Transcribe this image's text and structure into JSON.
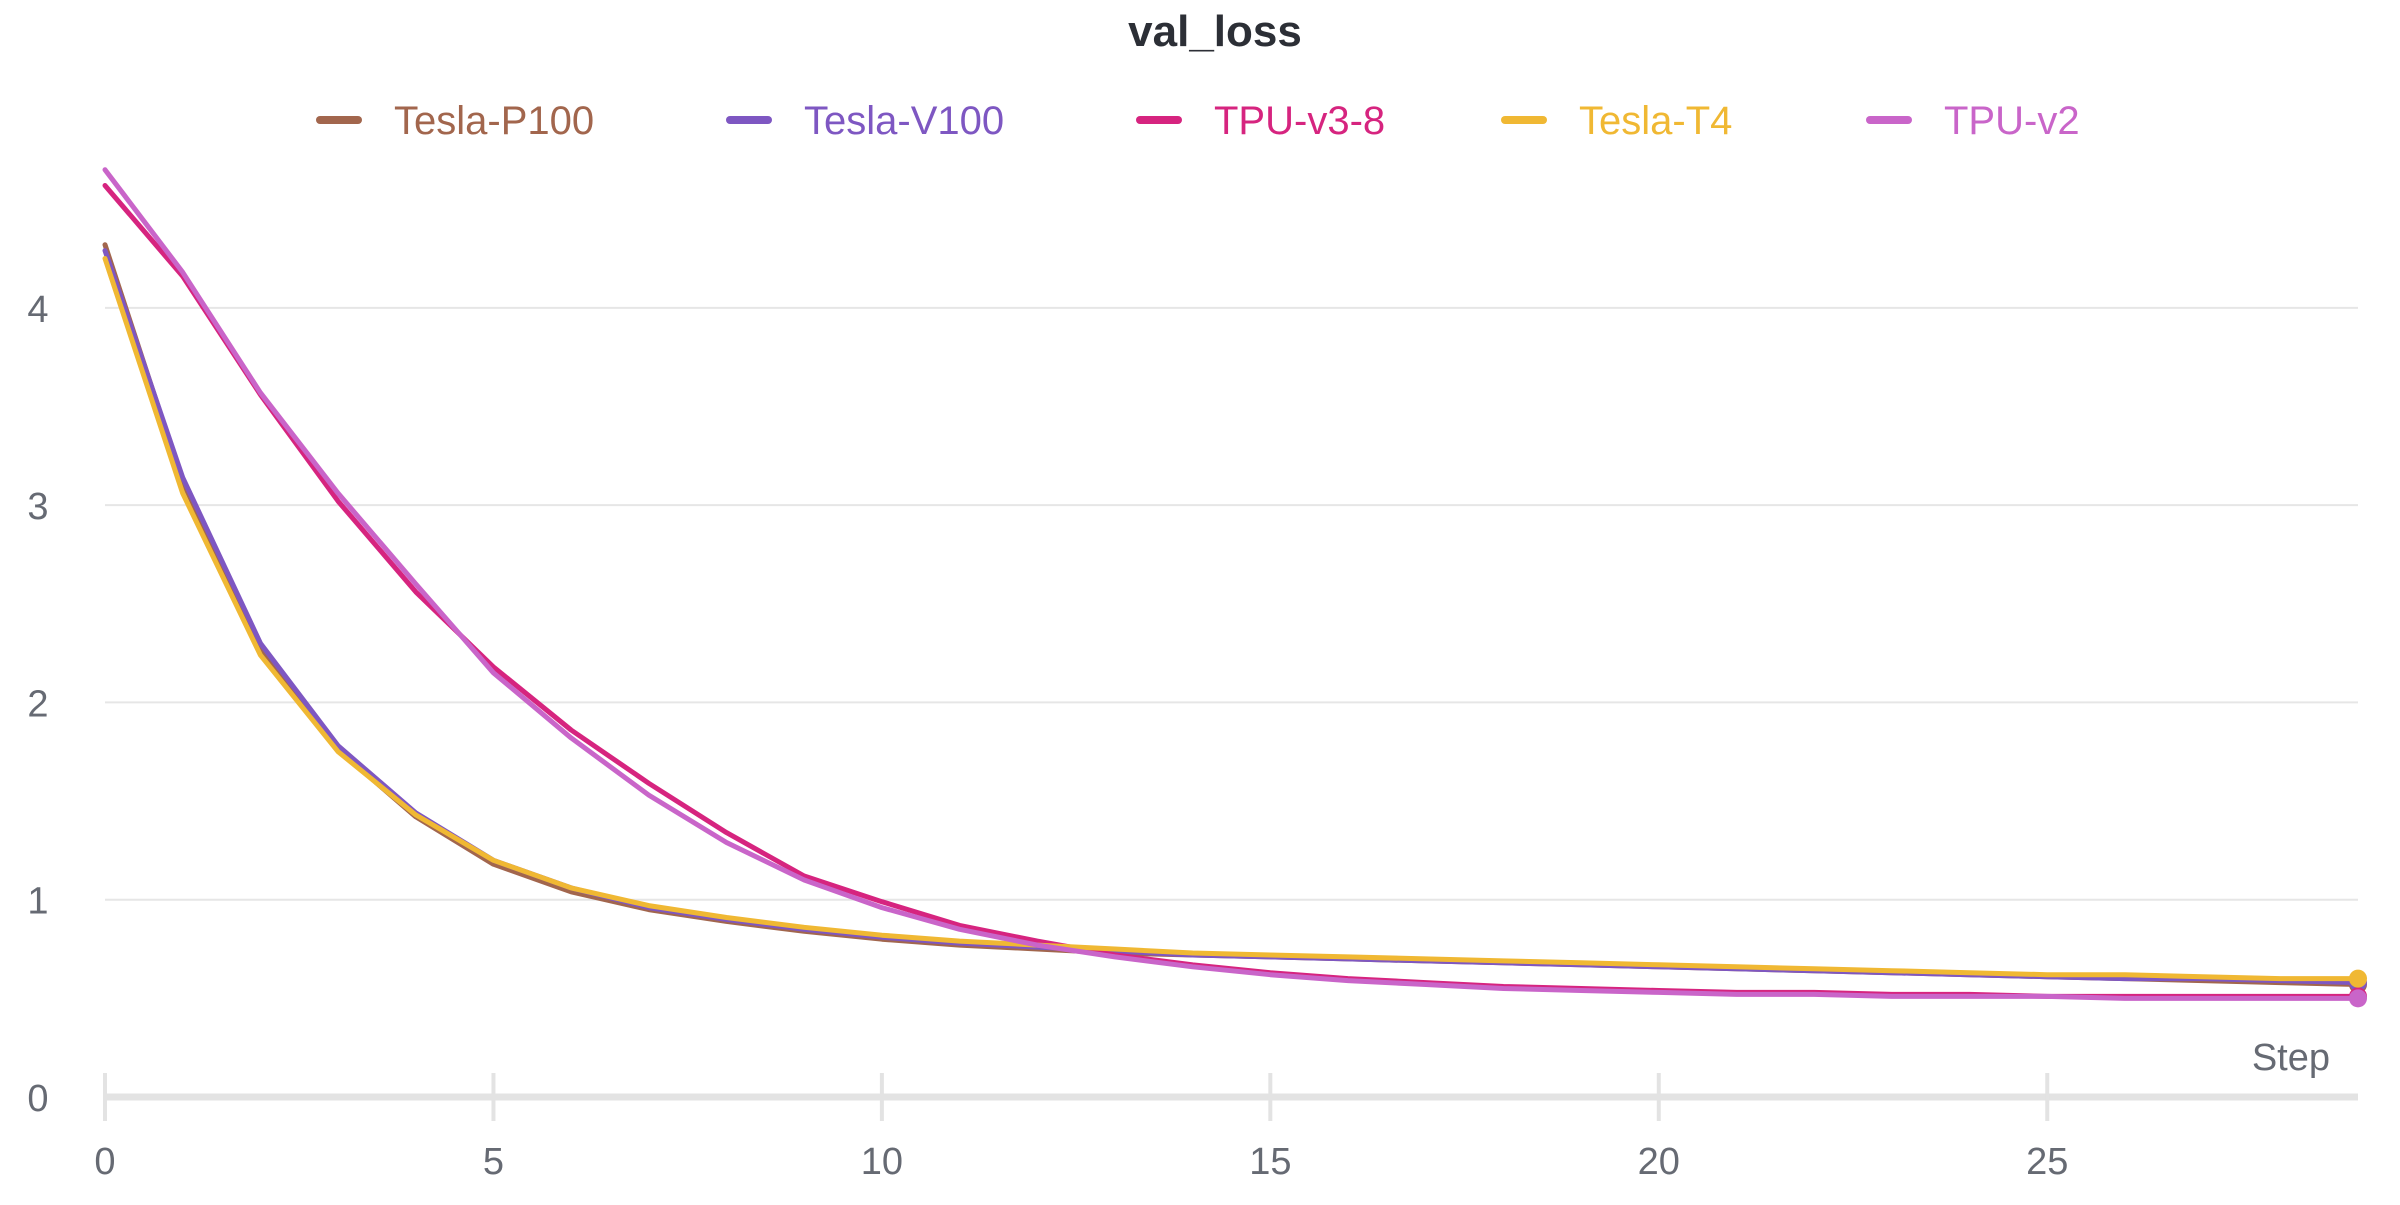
{
  "chart_data": {
    "type": "line",
    "title": "val_loss",
    "xlabel": "Step",
    "ylabel": "",
    "xlim": [
      0,
      29
    ],
    "ylim": [
      0,
      4.8
    ],
    "xticks": [
      0,
      5,
      10,
      15,
      20,
      25
    ],
    "yticks": [
      0,
      1,
      2,
      3,
      4
    ],
    "grid": true,
    "legend_position": "top",
    "x": [
      0,
      1,
      2,
      3,
      4,
      5,
      6,
      7,
      8,
      9,
      10,
      11,
      12,
      13,
      14,
      15,
      16,
      17,
      18,
      19,
      20,
      21,
      22,
      23,
      24,
      25,
      26,
      27,
      28,
      29
    ],
    "series": [
      {
        "name": "Tesla-P100",
        "color": "#a2664d",
        "values": [
          4.32,
          3.12,
          2.27,
          1.76,
          1.42,
          1.18,
          1.04,
          0.95,
          0.89,
          0.84,
          0.8,
          0.77,
          0.75,
          0.73,
          0.72,
          0.71,
          0.7,
          0.69,
          0.68,
          0.67,
          0.66,
          0.65,
          0.64,
          0.63,
          0.62,
          0.61,
          0.6,
          0.59,
          0.58,
          0.57
        ]
      },
      {
        "name": "Tesla-V100",
        "color": "#7e57c2",
        "values": [
          4.29,
          3.14,
          2.3,
          1.78,
          1.44,
          1.2,
          1.06,
          0.96,
          0.9,
          0.85,
          0.81,
          0.78,
          0.76,
          0.74,
          0.72,
          0.71,
          0.7,
          0.69,
          0.68,
          0.67,
          0.66,
          0.65,
          0.64,
          0.63,
          0.62,
          0.61,
          0.6,
          0.6,
          0.59,
          0.58
        ]
      },
      {
        "name": "TPU-v3-8",
        "color": "#d6247f",
        "values": [
          4.62,
          4.16,
          3.56,
          3.02,
          2.56,
          2.18,
          1.86,
          1.59,
          1.34,
          1.12,
          0.99,
          0.87,
          0.79,
          0.72,
          0.67,
          0.63,
          0.6,
          0.58,
          0.56,
          0.55,
          0.54,
          0.53,
          0.53,
          0.52,
          0.52,
          0.51,
          0.51,
          0.51,
          0.51,
          0.51
        ]
      },
      {
        "name": "Tesla-T4",
        "color": "#f0b833",
        "values": [
          4.25,
          3.06,
          2.24,
          1.75,
          1.43,
          1.2,
          1.06,
          0.97,
          0.91,
          0.86,
          0.82,
          0.79,
          0.77,
          0.75,
          0.73,
          0.72,
          0.71,
          0.7,
          0.69,
          0.68,
          0.67,
          0.66,
          0.65,
          0.64,
          0.63,
          0.62,
          0.62,
          0.61,
          0.6,
          0.6
        ]
      },
      {
        "name": "TPU-v2",
        "color": "#c965c9",
        "values": [
          4.7,
          4.18,
          3.57,
          3.06,
          2.6,
          2.15,
          1.82,
          1.53,
          1.29,
          1.1,
          0.96,
          0.85,
          0.77,
          0.71,
          0.66,
          0.62,
          0.59,
          0.57,
          0.55,
          0.54,
          0.53,
          0.52,
          0.52,
          0.51,
          0.51,
          0.51,
          0.5,
          0.5,
          0.5,
          0.5
        ]
      }
    ]
  },
  "colors": {
    "grid": "#e6e6e6",
    "axis": "#e3e3e3",
    "tick_text": "#666a73",
    "title_text": "#2c2f36"
  }
}
